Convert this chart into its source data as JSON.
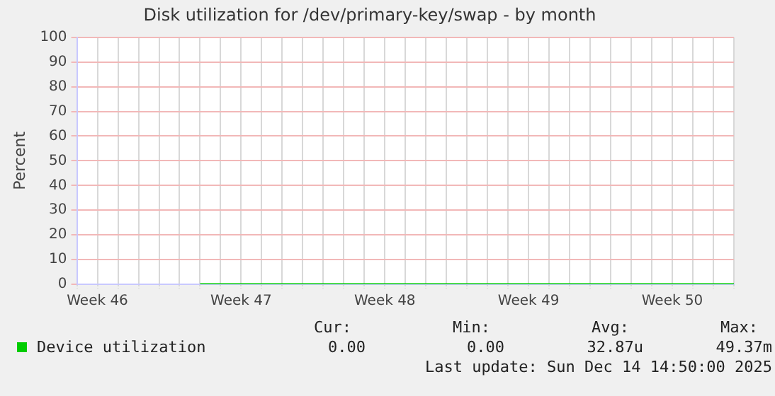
{
  "chart_data": {
    "type": "line",
    "title": "Disk utilization for /dev/primary-key/swap - by month",
    "ylabel": "Percent",
    "categories": [
      null,
      "Week 46",
      null,
      null,
      null,
      null,
      null,
      null,
      "Week 47",
      null,
      null,
      null,
      null,
      null,
      null,
      "Week 48",
      null,
      null,
      null,
      null,
      null,
      null,
      "Week 49",
      null,
      null,
      null,
      null,
      null,
      null,
      "Week 50",
      null,
      null,
      null
    ],
    "series": [
      {
        "name": "Device utilization",
        "color": "#00cc00",
        "values": [
          null,
          null,
          null,
          null,
          null,
          null,
          0,
          0,
          0,
          0,
          0,
          0,
          0,
          0,
          0,
          0,
          0,
          0,
          0,
          0,
          0,
          0,
          0,
          0,
          0,
          0,
          0,
          0,
          0,
          0,
          0,
          0,
          0
        ]
      }
    ],
    "ylim": [
      0,
      100
    ],
    "yticks": [
      0,
      10,
      20,
      30,
      40,
      50,
      60,
      70,
      80,
      90,
      100
    ],
    "grid": true,
    "legend": "bottom left",
    "marker": "none",
    "line_style": "solid",
    "annotations": [
      "Cur:",
      "Min:",
      "Avg:",
      "Max:",
      "0.00",
      "0.00",
      "32.87u",
      "49.37m",
      "Last update: Sun Dec 14 14:50:00 2025"
    ]
  }
}
